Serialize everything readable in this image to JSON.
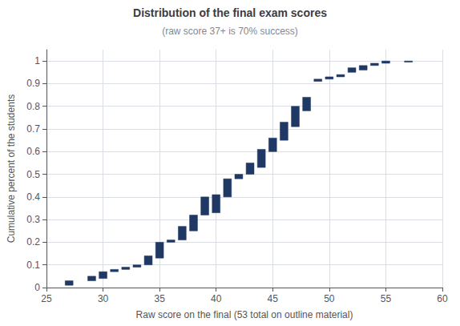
{
  "chart_data": {
    "type": "bar",
    "title": "Distribution of the final exam scores",
    "subtitle": "(raw score 37+ is 70% success)",
    "xlabel": "Raw score on the final (53 total on outline material)",
    "ylabel": "Cumulative percent of the students",
    "x": [
      27,
      29,
      30,
      31,
      32,
      33,
      34,
      35,
      36,
      37,
      38,
      39,
      40,
      41,
      42,
      43,
      44,
      45,
      46,
      47,
      48,
      49,
      50,
      51,
      52,
      53,
      54,
      55,
      57
    ],
    "bottoms": [
      0.01,
      0.03,
      0.04,
      0.07,
      0.08,
      0.09,
      0.1,
      0.13,
      0.2,
      0.21,
      0.25,
      0.32,
      0.33,
      0.4,
      0.48,
      0.5,
      0.53,
      0.6,
      0.65,
      0.71,
      0.78,
      0.91,
      0.92,
      0.93,
      0.95,
      0.96,
      0.98,
      0.99,
      0.995
    ],
    "values": [
      0.03,
      0.05,
      0.07,
      0.08,
      0.09,
      0.1,
      0.14,
      0.2,
      0.21,
      0.27,
      0.32,
      0.4,
      0.41,
      0.48,
      0.5,
      0.55,
      0.61,
      0.66,
      0.73,
      0.8,
      0.84,
      0.92,
      0.93,
      0.94,
      0.97,
      0.98,
      0.99,
      1.0,
      1.0
    ],
    "color": "#1F3864",
    "xlim": [
      25,
      60
    ],
    "xticks": [
      25,
      30,
      35,
      40,
      45,
      50,
      55,
      60
    ],
    "ylim": [
      0,
      1.05
    ],
    "yticks": [
      0,
      0.1,
      0.2,
      0.3,
      0.4,
      0.5,
      0.6,
      0.7,
      0.8,
      0.9,
      1
    ],
    "grid": true
  }
}
